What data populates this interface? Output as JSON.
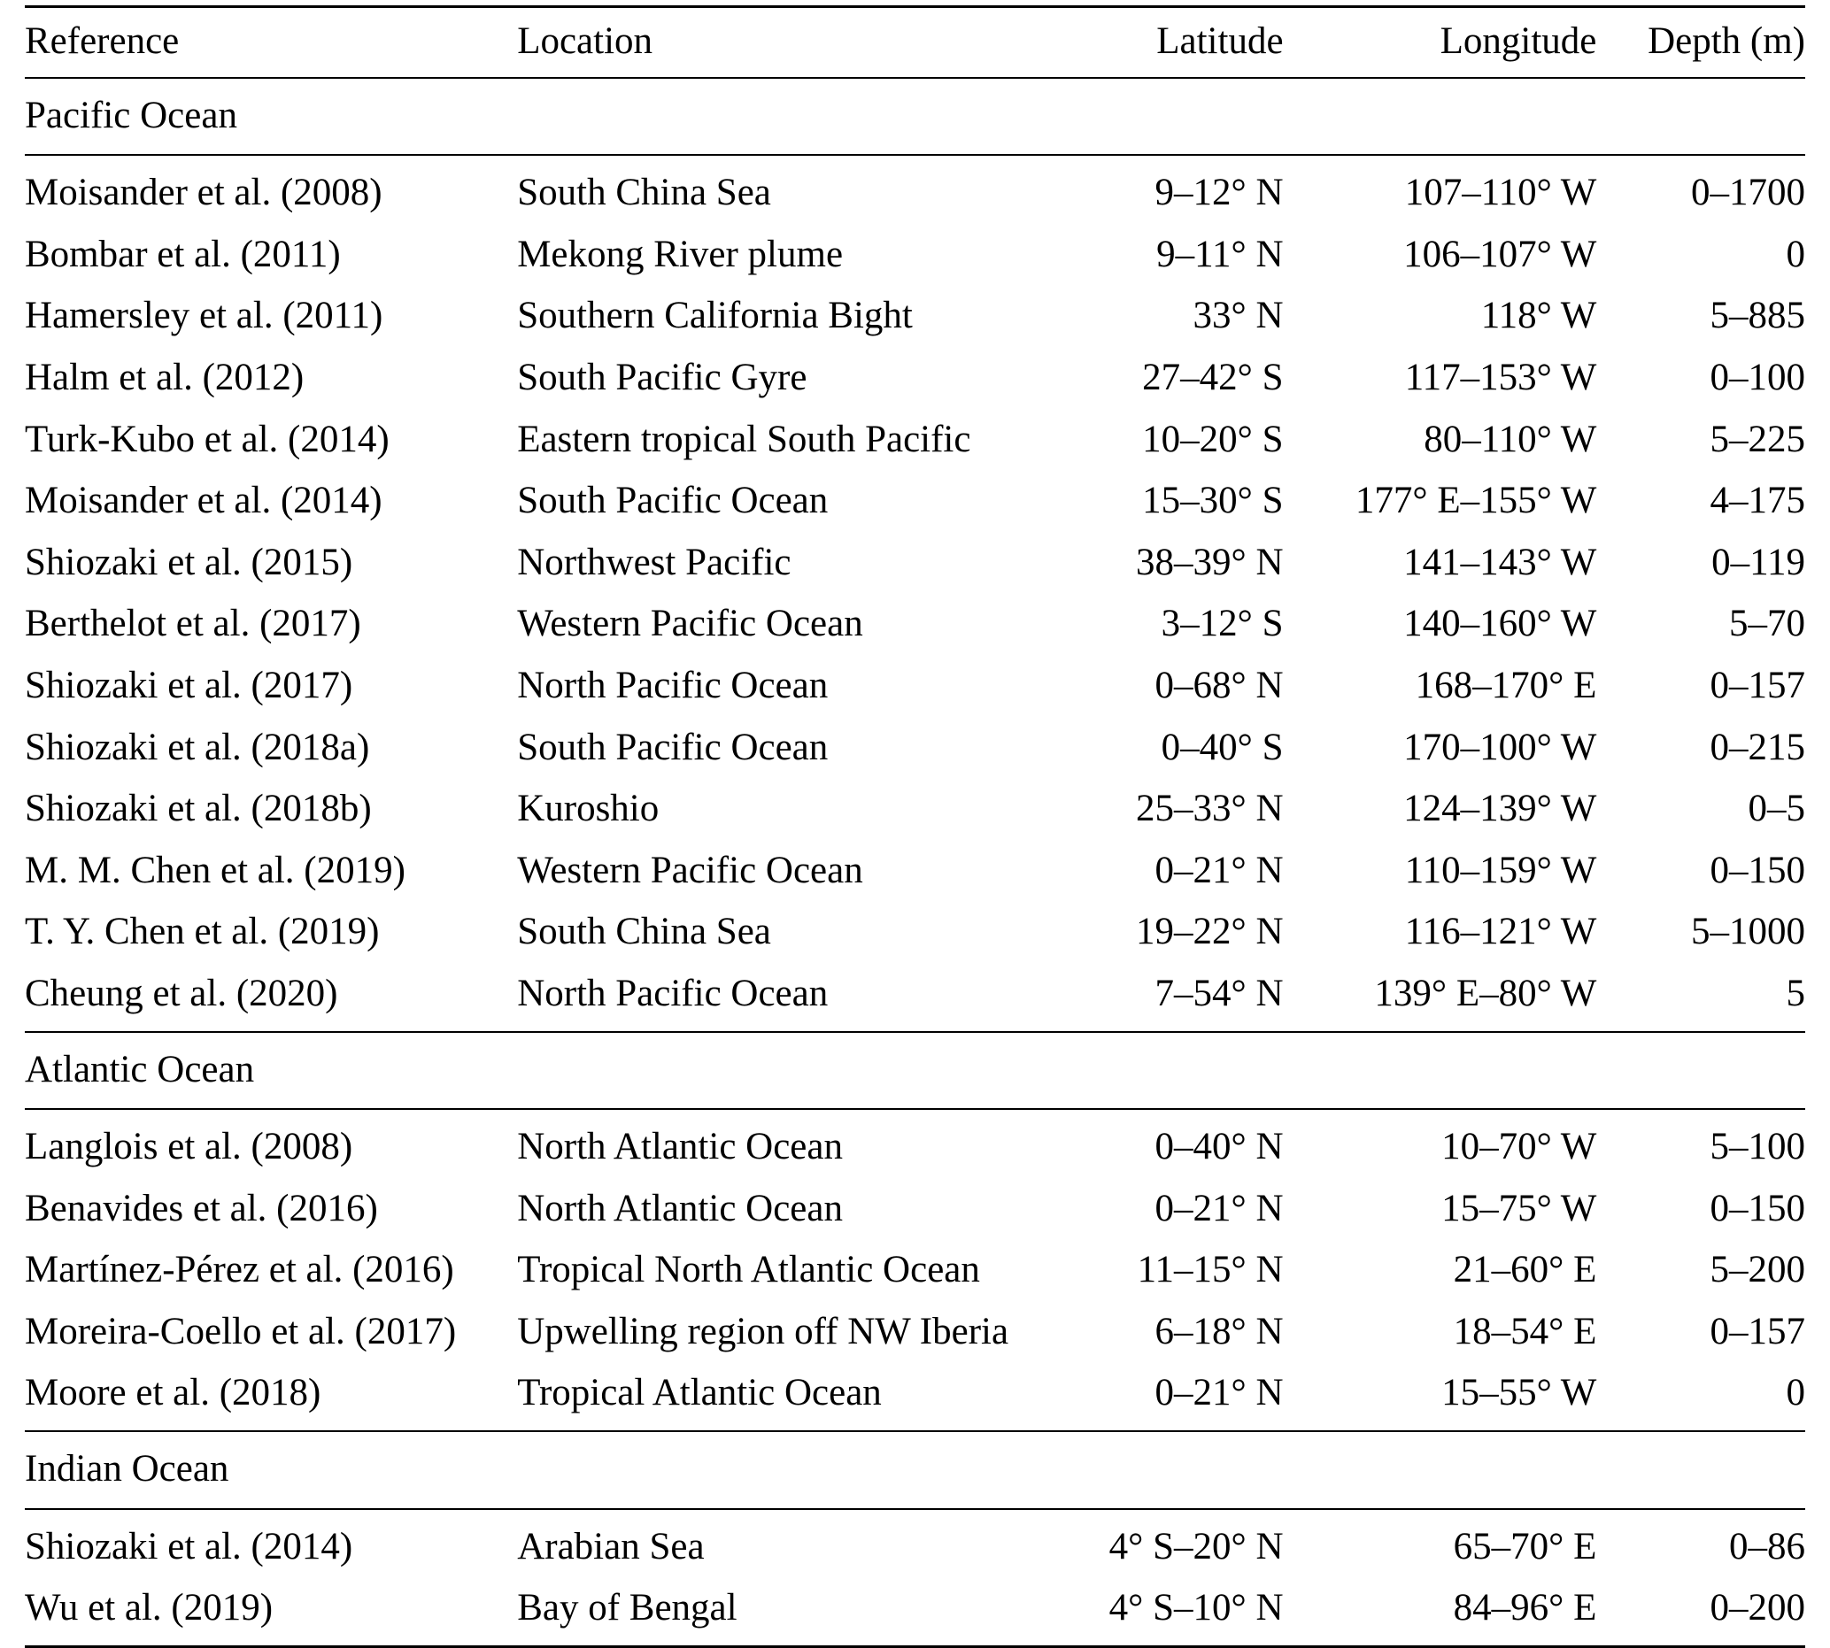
{
  "table": {
    "columns": [
      "Reference",
      "Location",
      "Latitude",
      "Longitude",
      "Depth (m)"
    ],
    "sections": [
      {
        "title": "Pacific Ocean",
        "rows": [
          [
            "Moisander et al. (2008)",
            "South China Sea",
            "9–12° N",
            "107–110° W",
            "0–1700"
          ],
          [
            "Bombar et al. (2011)",
            "Mekong River plume",
            "9–11° N",
            "106–107° W",
            "0"
          ],
          [
            "Hamersley et al. (2011)",
            "Southern California Bight",
            "33° N",
            "118° W",
            "5–885"
          ],
          [
            "Halm et al. (2012)",
            "South Pacific Gyre",
            "27–42° S",
            "117–153° W",
            "0–100"
          ],
          [
            "Turk-Kubo et al. (2014)",
            "Eastern tropical South Pacific",
            "10–20° S",
            "80–110° W",
            "5–225"
          ],
          [
            "Moisander et al. (2014)",
            "South Pacific Ocean",
            "15–30° S",
            "177° E–155° W",
            "4–175"
          ],
          [
            "Shiozaki et al. (2015)",
            "Northwest Pacific",
            "38–39° N",
            "141–143° W",
            "0–119"
          ],
          [
            "Berthelot et al. (2017)",
            "Western Pacific Ocean",
            "3–12° S",
            "140–160° W",
            "5–70"
          ],
          [
            "Shiozaki et al. (2017)",
            "North Pacific Ocean",
            "0–68° N",
            "168–170° E",
            "0–157"
          ],
          [
            "Shiozaki et al. (2018a)",
            "South Pacific Ocean",
            "0–40° S",
            "170–100° W",
            "0–215"
          ],
          [
            "Shiozaki et al. (2018b)",
            "Kuroshio",
            "25–33° N",
            "124–139° W",
            "0–5"
          ],
          [
            "M. M. Chen et al. (2019)",
            "Western Pacific Ocean",
            "0–21° N",
            "110–159° W",
            "0–150"
          ],
          [
            "T. Y. Chen et al. (2019)",
            "South China Sea",
            "19–22° N",
            "116–121° W",
            "5–1000"
          ],
          [
            "Cheung et al. (2020)",
            "North Pacific Ocean",
            "7–54° N",
            "139° E–80° W",
            "5"
          ]
        ]
      },
      {
        "title": "Atlantic Ocean",
        "rows": [
          [
            "Langlois et al. (2008)",
            "North Atlantic Ocean",
            "0–40° N",
            "10–70° W",
            "5–100"
          ],
          [
            "Benavides et al. (2016)",
            "North Atlantic Ocean",
            "0–21° N",
            "15–75° W",
            "0–150"
          ],
          [
            "Martínez-Pérez et al. (2016)",
            "Tropical North Atlantic Ocean",
            "11–15° N",
            "21–60° E",
            "5–200"
          ],
          [
            "Moreira-Coello et al. (2017)",
            "Upwelling region off NW Iberia",
            "6–18° N",
            "18–54° E",
            "0–157"
          ],
          [
            "Moore et al. (2018)",
            "Tropical Atlantic Ocean",
            "0–21° N",
            "15–55° W",
            "0"
          ]
        ]
      },
      {
        "title": "Indian Ocean",
        "rows": [
          [
            "Shiozaki et al. (2014)",
            "Arabian Sea",
            "4° S–20° N",
            "65–70° E",
            "0–86"
          ],
          [
            "Wu et al. (2019)",
            "Bay of Bengal",
            "4° S–10° N",
            "84–96° E",
            "0–200"
          ]
        ]
      }
    ]
  },
  "colors": {
    "text": "#000000",
    "background": "#ffffff",
    "rule": "#000000"
  }
}
